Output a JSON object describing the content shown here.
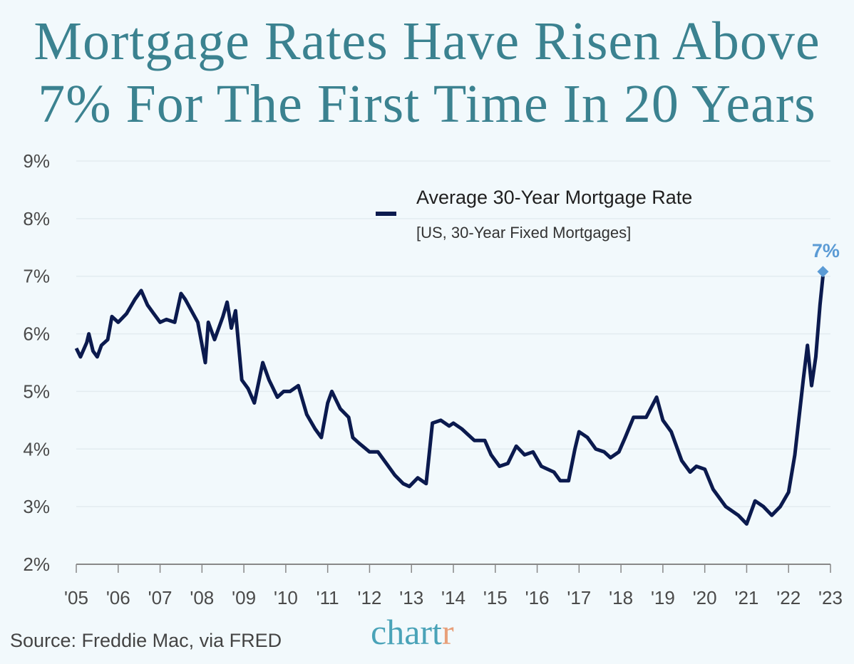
{
  "title": {
    "line1": "Mortgage Rates Have Risen Above",
    "line2": "7% For The First Time In 20 Years"
  },
  "legend": {
    "series_name": "Average 30-Year Mortgage Rate",
    "subtitle": "[US, 30-Year Fixed Mortgages]"
  },
  "source": "Source: Freddie Mac, via FRED",
  "logo": {
    "main": "chart",
    "accent": "r"
  },
  "colors": {
    "background": "#f2f9fc",
    "title": "#3b8290",
    "line": "#0b1a4e",
    "annotation": "#5b9bd5",
    "grid": "#e3ecf0"
  },
  "chart_data": {
    "type": "line",
    "ylim": [
      2,
      9
    ],
    "xlim": [
      2005,
      2023
    ],
    "y_ticks": [
      "2%",
      "3%",
      "4%",
      "5%",
      "6%",
      "7%",
      "8%",
      "9%"
    ],
    "x_ticks": [
      "'05",
      "'06",
      "'07",
      "'08",
      "'09",
      "'10",
      "'11",
      "'12",
      "'13",
      "'14",
      "'15",
      "'16",
      "'17",
      "'18",
      "'19",
      "'20",
      "'21",
      "'22",
      "'23"
    ],
    "grid": "horizontal",
    "legend_position": "top-right",
    "annotation": {
      "x": 2022.82,
      "y": 7.08,
      "label": "7%",
      "marker": "diamond"
    },
    "series": [
      {
        "name": "Average 30-Year Mortgage Rate",
        "x": [
          2005.0,
          2005.1,
          2005.25,
          2005.3,
          2005.4,
          2005.5,
          2005.6,
          2005.75,
          2005.85,
          2006.0,
          2006.2,
          2006.4,
          2006.55,
          2006.7,
          2006.85,
          2007.0,
          2007.15,
          2007.35,
          2007.5,
          2007.6,
          2007.75,
          2007.9,
          2008.08,
          2008.15,
          2008.3,
          2008.5,
          2008.6,
          2008.7,
          2008.8,
          2008.85,
          2008.95,
          2009.1,
          2009.25,
          2009.45,
          2009.6,
          2009.8,
          2009.95,
          2010.1,
          2010.3,
          2010.5,
          2010.7,
          2010.85,
          2011.0,
          2011.1,
          2011.3,
          2011.5,
          2011.6,
          2011.75,
          2012.0,
          2012.2,
          2012.4,
          2012.6,
          2012.8,
          2012.95,
          2013.15,
          2013.35,
          2013.5,
          2013.7,
          2013.9,
          2014.0,
          2014.2,
          2014.5,
          2014.75,
          2014.9,
          2015.1,
          2015.3,
          2015.5,
          2015.7,
          2015.9,
          2016.1,
          2016.4,
          2016.55,
          2016.75,
          2016.9,
          2017.0,
          2017.2,
          2017.4,
          2017.6,
          2017.75,
          2017.95,
          2018.1,
          2018.3,
          2018.6,
          2018.85,
          2019.0,
          2019.2,
          2019.45,
          2019.65,
          2019.8,
          2020.0,
          2020.2,
          2020.5,
          2020.8,
          2021.0,
          2021.2,
          2021.4,
          2021.6,
          2021.8,
          2022.0,
          2022.15,
          2022.35,
          2022.45,
          2022.55,
          2022.65,
          2022.75,
          2022.82
        ],
        "y": [
          5.75,
          5.6,
          5.85,
          6.0,
          5.7,
          5.6,
          5.8,
          5.9,
          6.3,
          6.2,
          6.35,
          6.6,
          6.75,
          6.5,
          6.35,
          6.2,
          6.25,
          6.2,
          6.7,
          6.6,
          6.4,
          6.2,
          5.5,
          6.2,
          5.9,
          6.3,
          6.55,
          6.1,
          6.4,
          6.0,
          5.2,
          5.05,
          4.8,
          5.5,
          5.2,
          4.9,
          5.0,
          5.0,
          5.1,
          4.6,
          4.35,
          4.2,
          4.8,
          5.0,
          4.7,
          4.55,
          4.2,
          4.1,
          3.95,
          3.95,
          3.75,
          3.55,
          3.4,
          3.35,
          3.5,
          3.4,
          4.45,
          4.5,
          4.4,
          4.45,
          4.35,
          4.15,
          4.15,
          3.9,
          3.7,
          3.75,
          4.05,
          3.9,
          3.95,
          3.7,
          3.6,
          3.45,
          3.45,
          4.0,
          4.3,
          4.2,
          4.0,
          3.95,
          3.85,
          3.95,
          4.2,
          4.55,
          4.55,
          4.9,
          4.5,
          4.3,
          3.8,
          3.6,
          3.7,
          3.65,
          3.3,
          3.0,
          2.85,
          2.7,
          3.1,
          3.0,
          2.85,
          3.0,
          3.25,
          3.9,
          5.2,
          5.8,
          5.1,
          5.6,
          6.5,
          7.0
        ]
      }
    ]
  }
}
